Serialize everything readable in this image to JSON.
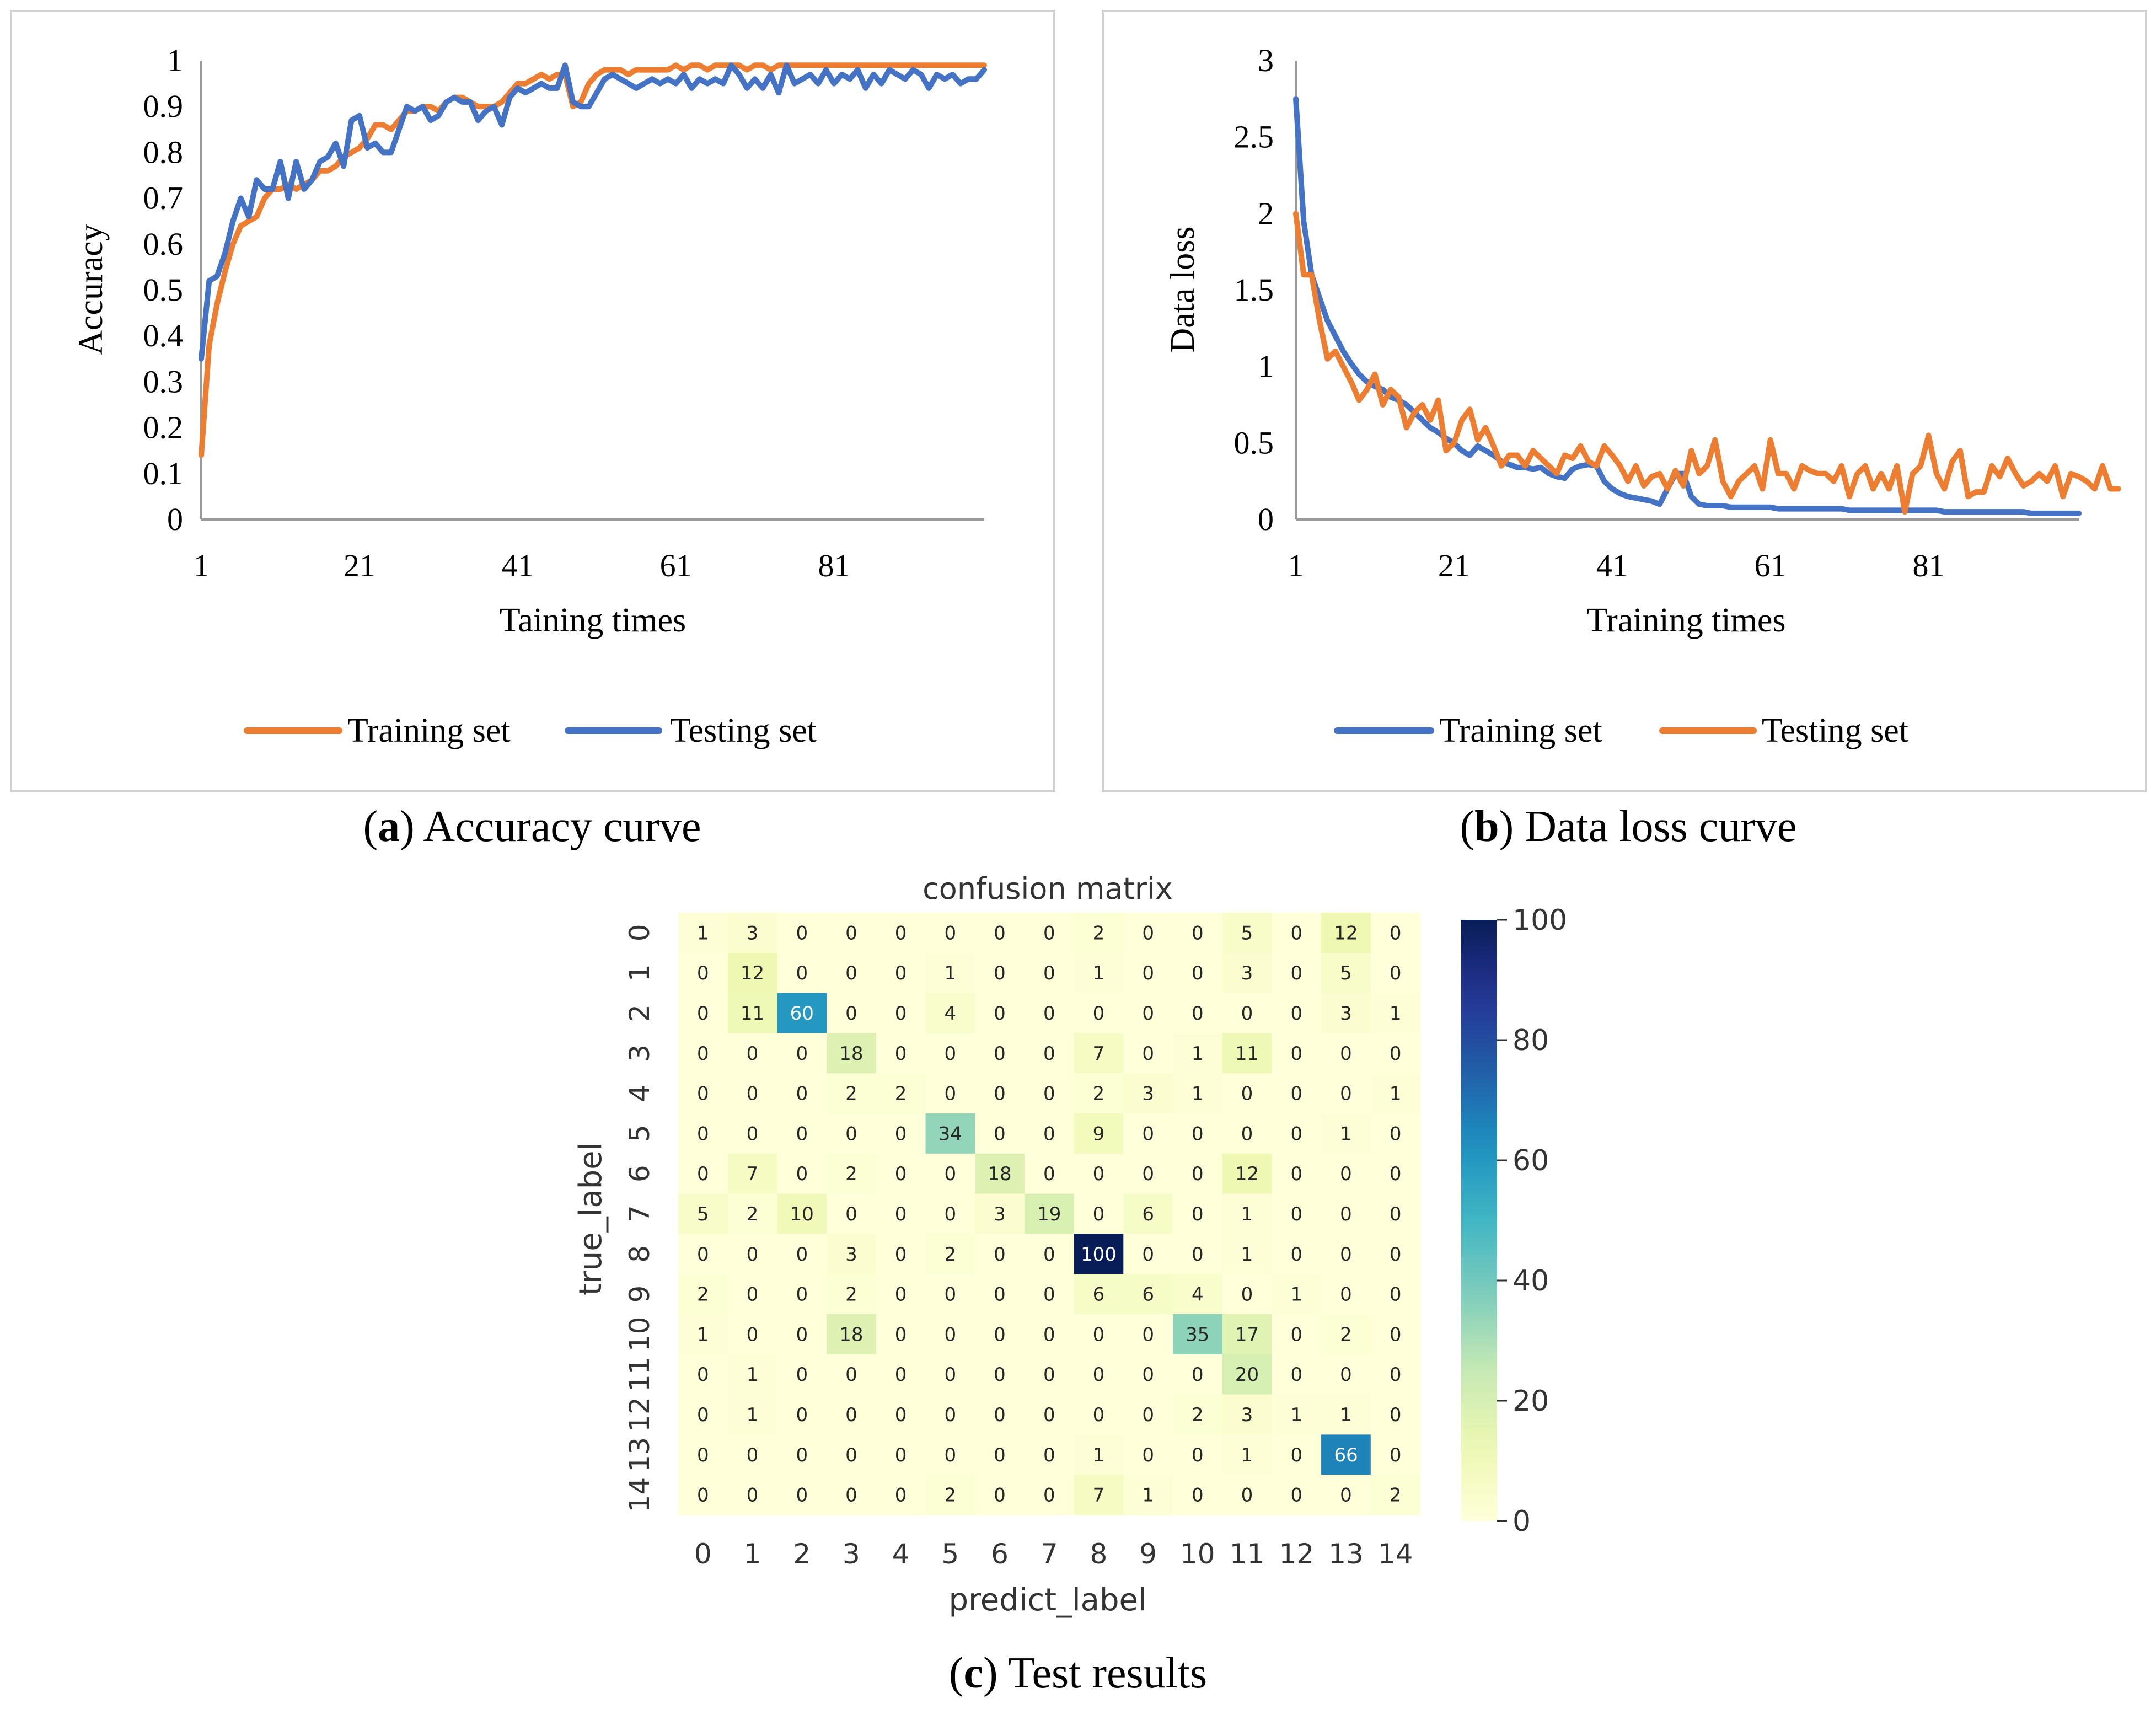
{
  "chart_data": [
    {
      "id": "a",
      "type": "line",
      "title": "",
      "caption_letter": "a",
      "caption_text": " Accuracy curve",
      "xlabel": "Taining times",
      "ylabel": "Accuracy",
      "xlim": [
        1,
        100
      ],
      "ylim": [
        0,
        1
      ],
      "xticks": [
        1,
        21,
        41,
        61,
        81
      ],
      "yticks": [
        0,
        0.1,
        0.2,
        0.3,
        0.4,
        0.5,
        0.6,
        0.7,
        0.8,
        0.9,
        1
      ],
      "grid": false,
      "legend_position": "bottom",
      "series": [
        {
          "name": "Training set",
          "color": "#ED7D31",
          "values": [
            0.14,
            0.38,
            0.47,
            0.54,
            0.6,
            0.64,
            0.65,
            0.66,
            0.7,
            0.72,
            0.72,
            0.73,
            0.72,
            0.73,
            0.74,
            0.76,
            0.76,
            0.77,
            0.79,
            0.8,
            0.81,
            0.83,
            0.86,
            0.86,
            0.85,
            0.87,
            0.89,
            0.89,
            0.9,
            0.9,
            0.89,
            0.91,
            0.92,
            0.92,
            0.91,
            0.9,
            0.9,
            0.9,
            0.91,
            0.93,
            0.95,
            0.95,
            0.96,
            0.97,
            0.96,
            0.97,
            0.97,
            0.9,
            0.91,
            0.95,
            0.97,
            0.98,
            0.98,
            0.98,
            0.97,
            0.98,
            0.98,
            0.98,
            0.98,
            0.98,
            0.99,
            0.98,
            0.99,
            0.99,
            0.98,
            0.99,
            0.99,
            0.99,
            0.99,
            0.98,
            0.99,
            0.99,
            0.98,
            0.99,
            0.99,
            0.99,
            0.99,
            0.99,
            0.99,
            0.99,
            0.99,
            0.99,
            0.99,
            0.99,
            0.99,
            0.99,
            0.99,
            0.99,
            0.99,
            0.99,
            0.99,
            0.99,
            0.99,
            0.99,
            0.99,
            0.99,
            0.99,
            0.99,
            0.99,
            0.99
          ]
        },
        {
          "name": "Testing set",
          "color": "#4472C4",
          "values": [
            0.35,
            0.52,
            0.53,
            0.58,
            0.65,
            0.7,
            0.66,
            0.74,
            0.72,
            0.72,
            0.78,
            0.7,
            0.78,
            0.72,
            0.74,
            0.78,
            0.79,
            0.82,
            0.77,
            0.87,
            0.88,
            0.81,
            0.82,
            0.8,
            0.8,
            0.85,
            0.9,
            0.89,
            0.9,
            0.87,
            0.88,
            0.91,
            0.92,
            0.91,
            0.91,
            0.87,
            0.89,
            0.9,
            0.86,
            0.92,
            0.94,
            0.93,
            0.94,
            0.95,
            0.94,
            0.94,
            0.99,
            0.91,
            0.9,
            0.9,
            0.93,
            0.96,
            0.97,
            0.96,
            0.95,
            0.94,
            0.95,
            0.96,
            0.95,
            0.96,
            0.95,
            0.97,
            0.94,
            0.96,
            0.95,
            0.96,
            0.95,
            0.99,
            0.97,
            0.94,
            0.96,
            0.94,
            0.97,
            0.93,
            0.99,
            0.95,
            0.96,
            0.97,
            0.95,
            0.98,
            0.95,
            0.97,
            0.96,
            0.98,
            0.94,
            0.97,
            0.95,
            0.98,
            0.97,
            0.96,
            0.98,
            0.97,
            0.94,
            0.97,
            0.96,
            0.97,
            0.95,
            0.96,
            0.96,
            0.98
          ]
        }
      ]
    },
    {
      "id": "b",
      "type": "line",
      "title": "",
      "caption_letter": "b",
      "caption_text": " Data loss curve",
      "xlabel": "Training times",
      "ylabel": "Data loss",
      "xlim": [
        1,
        100
      ],
      "ylim": [
        0,
        3
      ],
      "xticks": [
        1,
        21,
        41,
        61,
        81
      ],
      "yticks": [
        0,
        0.5,
        1,
        1.5,
        2,
        2.5,
        3
      ],
      "grid": false,
      "legend_position": "bottom",
      "series": [
        {
          "name": "Training set",
          "color": "#4472C4",
          "values": [
            2.75,
            1.95,
            1.6,
            1.45,
            1.3,
            1.2,
            1.1,
            1.02,
            0.95,
            0.9,
            0.87,
            0.85,
            0.8,
            0.78,
            0.75,
            0.7,
            0.65,
            0.6,
            0.57,
            0.53,
            0.5,
            0.45,
            0.42,
            0.48,
            0.45,
            0.42,
            0.38,
            0.36,
            0.34,
            0.34,
            0.33,
            0.34,
            0.3,
            0.28,
            0.27,
            0.33,
            0.35,
            0.36,
            0.35,
            0.25,
            0.2,
            0.17,
            0.15,
            0.14,
            0.13,
            0.12,
            0.1,
            0.2,
            0.3,
            0.3,
            0.15,
            0.1,
            0.09,
            0.09,
            0.09,
            0.08,
            0.08,
            0.08,
            0.08,
            0.08,
            0.08,
            0.07,
            0.07,
            0.07,
            0.07,
            0.07,
            0.07,
            0.07,
            0.07,
            0.07,
            0.06,
            0.06,
            0.06,
            0.06,
            0.06,
            0.06,
            0.06,
            0.06,
            0.06,
            0.06,
            0.06,
            0.06,
            0.05,
            0.05,
            0.05,
            0.05,
            0.05,
            0.05,
            0.05,
            0.05,
            0.05,
            0.05,
            0.05,
            0.04,
            0.04,
            0.04,
            0.04,
            0.04,
            0.04,
            0.04
          ]
        },
        {
          "name": "Testing set",
          "color": "#ED7D31",
          "values": [
            2.0,
            1.6,
            1.6,
            1.3,
            1.05,
            1.1,
            1.0,
            0.9,
            0.78,
            0.85,
            0.95,
            0.75,
            0.85,
            0.8,
            0.6,
            0.7,
            0.75,
            0.65,
            0.78,
            0.45,
            0.5,
            0.65,
            0.72,
            0.52,
            0.6,
            0.48,
            0.35,
            0.42,
            0.42,
            0.35,
            0.45,
            0.4,
            0.35,
            0.3,
            0.42,
            0.4,
            0.48,
            0.38,
            0.35,
            0.48,
            0.42,
            0.35,
            0.25,
            0.35,
            0.22,
            0.28,
            0.3,
            0.2,
            0.32,
            0.22,
            0.45,
            0.3,
            0.35,
            0.52,
            0.25,
            0.15,
            0.25,
            0.3,
            0.35,
            0.2,
            0.52,
            0.3,
            0.3,
            0.2,
            0.35,
            0.32,
            0.3,
            0.3,
            0.25,
            0.35,
            0.15,
            0.3,
            0.35,
            0.2,
            0.3,
            0.2,
            0.35,
            0.05,
            0.3,
            0.35,
            0.55,
            0.3,
            0.2,
            0.38,
            0.45,
            0.15,
            0.18,
            0.18,
            0.35,
            0.28,
            0.4,
            0.3,
            0.22,
            0.25,
            0.3,
            0.25,
            0.35,
            0.15,
            0.3,
            0.28,
            0.25,
            0.2,
            0.35,
            0.2,
            0.2
          ]
        }
      ]
    },
    {
      "id": "c",
      "type": "heatmap",
      "title": "confusion matrix",
      "caption_letter": "c",
      "caption_text": " Test results",
      "xlabel": "predict_label",
      "ylabel": "true_label",
      "x_categories": [
        "0",
        "1",
        "2",
        "3",
        "4",
        "5",
        "6",
        "7",
        "8",
        "9",
        "10",
        "11",
        "12",
        "13",
        "14"
      ],
      "y_categories": [
        "0",
        "1",
        "2",
        "3",
        "4",
        "5",
        "6",
        "7",
        "8",
        "9",
        "10",
        "11",
        "12",
        "13",
        "14"
      ],
      "colorbar_ticks": [
        0,
        20,
        40,
        60,
        80,
        100
      ],
      "vmin": 0,
      "vmax": 100,
      "matrix": [
        [
          1,
          3,
          0,
          0,
          0,
          0,
          0,
          0,
          2,
          0,
          0,
          5,
          0,
          12,
          0
        ],
        [
          0,
          12,
          0,
          0,
          0,
          1,
          0,
          0,
          1,
          0,
          0,
          3,
          0,
          5,
          0
        ],
        [
          0,
          11,
          60,
          0,
          0,
          4,
          0,
          0,
          0,
          0,
          0,
          0,
          0,
          3,
          1
        ],
        [
          0,
          0,
          0,
          18,
          0,
          0,
          0,
          0,
          7,
          0,
          1,
          11,
          0,
          0,
          0
        ],
        [
          0,
          0,
          0,
          2,
          2,
          0,
          0,
          0,
          2,
          3,
          1,
          0,
          0,
          0,
          1
        ],
        [
          0,
          0,
          0,
          0,
          0,
          34,
          0,
          0,
          9,
          0,
          0,
          0,
          0,
          1,
          0
        ],
        [
          0,
          7,
          0,
          2,
          0,
          0,
          18,
          0,
          0,
          0,
          0,
          12,
          0,
          0,
          0
        ],
        [
          5,
          2,
          10,
          0,
          0,
          0,
          3,
          19,
          0,
          6,
          0,
          1,
          0,
          0,
          0
        ],
        [
          0,
          0,
          0,
          3,
          0,
          2,
          0,
          0,
          100,
          0,
          0,
          1,
          0,
          0,
          0
        ],
        [
          2,
          0,
          0,
          2,
          0,
          0,
          0,
          0,
          6,
          6,
          4,
          0,
          1,
          0,
          0
        ],
        [
          1,
          0,
          0,
          18,
          0,
          0,
          0,
          0,
          0,
          0,
          35,
          17,
          0,
          2,
          0
        ],
        [
          0,
          1,
          0,
          0,
          0,
          0,
          0,
          0,
          0,
          0,
          0,
          20,
          0,
          0,
          0
        ],
        [
          0,
          1,
          0,
          0,
          0,
          0,
          0,
          0,
          0,
          0,
          2,
          3,
          1,
          1,
          0
        ],
        [
          0,
          0,
          0,
          0,
          0,
          0,
          0,
          0,
          1,
          0,
          0,
          1,
          0,
          66,
          0
        ],
        [
          0,
          0,
          0,
          0,
          0,
          2,
          0,
          0,
          7,
          1,
          0,
          0,
          0,
          0,
          2
        ]
      ]
    }
  ]
}
